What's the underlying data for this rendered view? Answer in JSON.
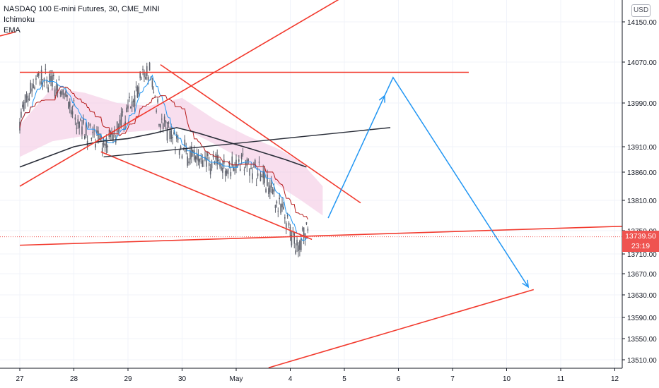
{
  "header": {
    "title": "NASDAQ 100 E-mini Futures, 30, CME_MINI",
    "indicators": [
      "Ichimoku",
      "EMA"
    ]
  },
  "price_scale": {
    "currency": "USD",
    "ticks": [
      "14150.00",
      "14070.00",
      "13990.00",
      "13910.00",
      "13860.00",
      "13810.00",
      "13750.00",
      "13710.00",
      "13670.00",
      "13630.00",
      "13590.00",
      "13550.00",
      "13510.00"
    ]
  },
  "last_price": {
    "value": "13739.50",
    "countdown": "23:19",
    "color": "#ef5350"
  },
  "colors": {
    "up": "#26a69a",
    "down": "#ef5350",
    "candle": "#5d606b",
    "cloud": "#f3c8e3",
    "tenkan": "#2196f3",
    "kijun": "#b71c1c",
    "ema": "#2a2e39",
    "trend": "#f23a2e",
    "projection": "#2196f3"
  },
  "chart_data": {
    "type": "line",
    "title": "NASDAQ 100 E-mini Futures, 30, CME_MINI",
    "x_axis": {
      "labels": [
        "27",
        "28",
        "29",
        "30",
        "May",
        "4",
        "5",
        "6",
        "7",
        "10",
        "11",
        "12"
      ]
    },
    "ylim": [
      13490,
      14200
    ],
    "price_series": {
      "name": "",
      "x": [
        0,
        0.3,
        0.6,
        0.9,
        1.1,
        1.3,
        1.6,
        1.9,
        2.2,
        2.4,
        2.6,
        2.9,
        3.2,
        3.5,
        3.8,
        4.1,
        4.4,
        4.7,
        4.95,
        5.05,
        5.2,
        5.33
      ],
      "y": [
        13960,
        14040,
        14030,
        13990,
        13960,
        13930,
        13910,
        13950,
        14030,
        14050,
        13960,
        13910,
        13890,
        13880,
        13870,
        13880,
        13860,
        13820,
        13760,
        13730,
        13735,
        13745
      ]
    },
    "trendlines": [
      {
        "name": "",
        "x1": 0,
        "y1": 13725,
        "x2": 11.5,
        "y2": 13760
      },
      {
        "name": "",
        "x1": 0,
        "y1": 14050,
        "x2": 8.3,
        "y2": 14050
      },
      {
        "name": "",
        "x1": 0,
        "y1": 13835,
        "x2": 6.3,
        "y2": 14220
      },
      {
        "name": "",
        "x1": 2.6,
        "y1": 14065,
        "x2": 6.3,
        "y2": 13805
      },
      {
        "name": "",
        "x1": 1.5,
        "y1": 13900,
        "x2": 5.4,
        "y2": 13735
      },
      {
        "name": "",
        "x1": 4.6,
        "y1": 13495,
        "x2": 9.5,
        "y2": 13640
      }
    ],
    "projection": [
      {
        "x": 5.7,
        "y": 13775
      },
      {
        "x": 6.9,
        "y": 14040
      },
      {
        "x": 9.4,
        "y": 13645
      }
    ],
    "ema_line": {
      "x": [
        0,
        0.5,
        1,
        1.5,
        2,
        2.5,
        2.9,
        3.3,
        3.8,
        4.3,
        4.9,
        5.3
      ],
      "y": [
        13870,
        13890,
        13910,
        13920,
        13925,
        13935,
        13945,
        13935,
        13920,
        13905,
        13885,
        13870
      ]
    },
    "cloud": {
      "x": [
        0,
        0.6,
        1.2,
        1.8,
        2.4,
        3.0,
        3.6,
        4.2,
        4.8,
        5.2,
        5.6
      ],
      "top": [
        13950,
        14020,
        14010,
        13990,
        13985,
        14000,
        13960,
        13930,
        13905,
        13880,
        13835
      ],
      "bottom": [
        13890,
        13920,
        13930,
        13935,
        13940,
        13945,
        13915,
        13880,
        13835,
        13810,
        13780
      ]
    }
  }
}
